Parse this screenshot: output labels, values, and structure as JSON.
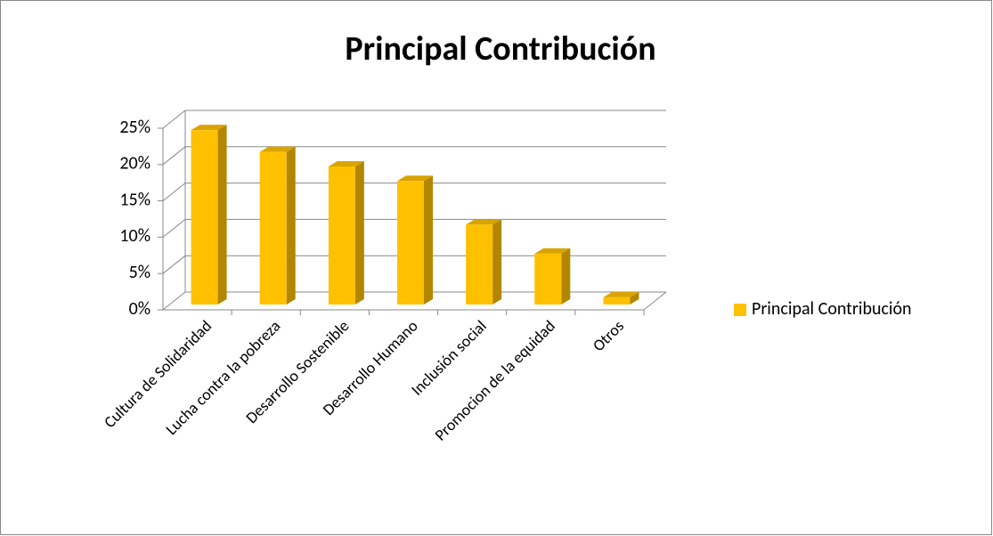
{
  "chart_data": {
    "type": "bar3d",
    "title": "Principal Contribución",
    "categories": [
      "Cultura de Solidaridad",
      "Lucha contra la pobreza",
      "Desarrollo Sostenible",
      "Desarrollo Humano",
      "Inclusión social",
      "Promocion de la equidad",
      "Otros"
    ],
    "series": [
      {
        "name": "Principal Contribución",
        "color": "#ffc000",
        "values": [
          24,
          21,
          19,
          17,
          11,
          7,
          1
        ]
      }
    ],
    "ylim": [
      0,
      25
    ],
    "yticks": [
      {
        "value": 0,
        "label": "0%"
      },
      {
        "value": 5,
        "label": "5%"
      },
      {
        "value": 10,
        "label": "10%"
      },
      {
        "value": 15,
        "label": "15%"
      },
      {
        "value": 20,
        "label": "20%"
      },
      {
        "value": 25,
        "label": "25%"
      }
    ],
    "grid": true,
    "legend": "right"
  }
}
